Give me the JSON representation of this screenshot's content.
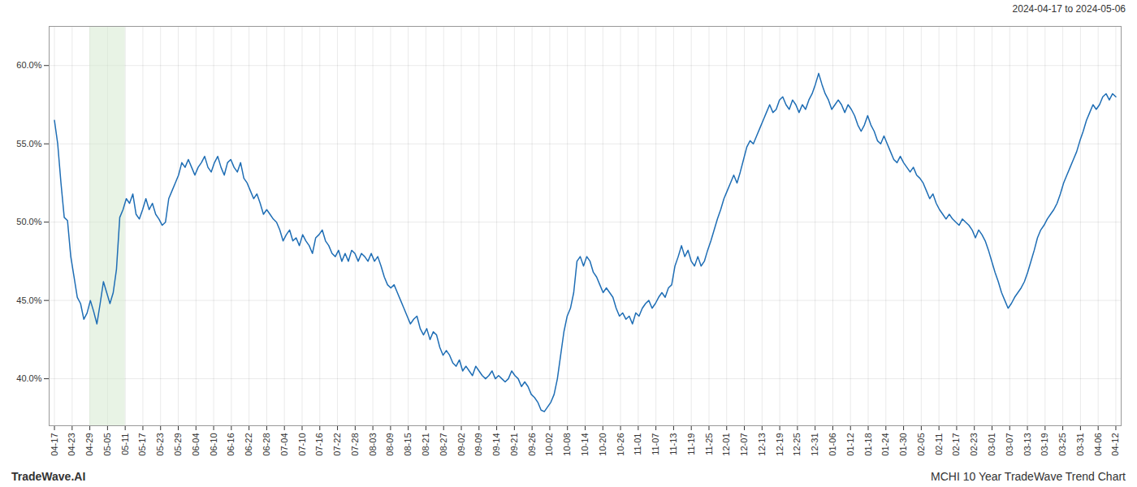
{
  "chart_data": {
    "type": "line",
    "title": "2024-04-17 to 2024-05-06",
    "annotations": [
      "TradeWave.AI",
      "MCHI 10 Year TradeWave Trend Chart"
    ],
    "color": "#1f6eb5",
    "grid": true,
    "xlim": [
      -0.3,
      60.3
    ],
    "xticks": [
      {
        "value": 0,
        "label": "04-17"
      },
      {
        "value": 1,
        "label": "04-23"
      },
      {
        "value": 2,
        "label": "04-29"
      },
      {
        "value": 3,
        "label": "05-05"
      },
      {
        "value": 4,
        "label": "05-11"
      },
      {
        "value": 5,
        "label": "05-17"
      },
      {
        "value": 6,
        "label": "05-23"
      },
      {
        "value": 7,
        "label": "05-29"
      },
      {
        "value": 8,
        "label": "06-04"
      },
      {
        "value": 9,
        "label": "06-10"
      },
      {
        "value": 10,
        "label": "06-16"
      },
      {
        "value": 11,
        "label": "06-22"
      },
      {
        "value": 12,
        "label": "06-28"
      },
      {
        "value": 13,
        "label": "07-04"
      },
      {
        "value": 14,
        "label": "07-10"
      },
      {
        "value": 15,
        "label": "07-16"
      },
      {
        "value": 16,
        "label": "07-22"
      },
      {
        "value": 17,
        "label": "07-28"
      },
      {
        "value": 18,
        "label": "08-03"
      },
      {
        "value": 19,
        "label": "08-09"
      },
      {
        "value": 20,
        "label": "08-15"
      },
      {
        "value": 21,
        "label": "08-21"
      },
      {
        "value": 22,
        "label": "08-27"
      },
      {
        "value": 23,
        "label": "09-02"
      },
      {
        "value": 24,
        "label": "09-09"
      },
      {
        "value": 25,
        "label": "09-14"
      },
      {
        "value": 26,
        "label": "09-21"
      },
      {
        "value": 27,
        "label": "09-26"
      },
      {
        "value": 28,
        "label": "10-02"
      },
      {
        "value": 29,
        "label": "10-08"
      },
      {
        "value": 30,
        "label": "10-14"
      },
      {
        "value": 31,
        "label": "10-20"
      },
      {
        "value": 32,
        "label": "10-26"
      },
      {
        "value": 33,
        "label": "11-01"
      },
      {
        "value": 34,
        "label": "11-07"
      },
      {
        "value": 35,
        "label": "11-13"
      },
      {
        "value": 36,
        "label": "11-19"
      },
      {
        "value": 37,
        "label": "11-25"
      },
      {
        "value": 38,
        "label": "12-01"
      },
      {
        "value": 39,
        "label": "12-07"
      },
      {
        "value": 40,
        "label": "12-13"
      },
      {
        "value": 41,
        "label": "12-19"
      },
      {
        "value": 42,
        "label": "12-25"
      },
      {
        "value": 43,
        "label": "12-31"
      },
      {
        "value": 44,
        "label": "01-06"
      },
      {
        "value": 45,
        "label": "01-12"
      },
      {
        "value": 46,
        "label": "01-18"
      },
      {
        "value": 47,
        "label": "01-24"
      },
      {
        "value": 48,
        "label": "01-30"
      },
      {
        "value": 49,
        "label": "02-05"
      },
      {
        "value": 50,
        "label": "02-11"
      },
      {
        "value": 51,
        "label": "02-17"
      },
      {
        "value": 52,
        "label": "02-23"
      },
      {
        "value": 53,
        "label": "03-01"
      },
      {
        "value": 54,
        "label": "03-07"
      },
      {
        "value": 55,
        "label": "03-13"
      },
      {
        "value": 56,
        "label": "03-19"
      },
      {
        "value": 57,
        "label": "03-25"
      },
      {
        "value": 58,
        "label": "03-31"
      },
      {
        "value": 59,
        "label": "04-06"
      },
      {
        "value": 60,
        "label": "04-12"
      }
    ],
    "ylim": [
      37.0,
      62.5
    ],
    "yticks": [
      {
        "value": 40.0,
        "label": "40.0%"
      },
      {
        "value": 45.0,
        "label": "45.0%"
      },
      {
        "value": 50.0,
        "label": "50.0%"
      },
      {
        "value": 55.0,
        "label": "55.0%"
      },
      {
        "value": 60.0,
        "label": "60.0%"
      }
    ],
    "highlight": {
      "x": [
        2,
        4
      ],
      "color": "#d6ead0"
    },
    "values": [
      56.5,
      55.0,
      52.5,
      50.3,
      50.1,
      47.8,
      46.5,
      45.2,
      44.8,
      43.8,
      44.2,
      45.0,
      44.3,
      43.5,
      44.8,
      46.2,
      45.5,
      44.8,
      45.5,
      47.0,
      50.3,
      50.8,
      51.5,
      51.2,
      51.8,
      50.5,
      50.2,
      50.8,
      51.5,
      50.8,
      51.2,
      50.5,
      50.2,
      49.8,
      50.0,
      51.5,
      52.0,
      52.5,
      53.0,
      53.8,
      53.5,
      54.0,
      53.5,
      53.0,
      53.5,
      53.8,
      54.2,
      53.5,
      53.2,
      53.8,
      54.2,
      53.5,
      53.0,
      53.8,
      54.0,
      53.5,
      53.2,
      53.8,
      52.8,
      52.5,
      52.0,
      51.5,
      51.8,
      51.2,
      50.5,
      50.8,
      50.5,
      50.2,
      50.0,
      49.5,
      48.8,
      49.2,
      49.5,
      48.8,
      49.0,
      48.5,
      49.2,
      48.8,
      48.5,
      48.0,
      49.0,
      49.2,
      49.5,
      48.8,
      48.5,
      48.0,
      47.8,
      48.2,
      47.5,
      48.0,
      47.5,
      48.2,
      48.0,
      47.5,
      48.0,
      47.8,
      47.5,
      48.0,
      47.5,
      47.8,
      47.2,
      46.5,
      46.0,
      45.8,
      46.0,
      45.5,
      45.0,
      44.5,
      44.0,
      43.5,
      43.8,
      44.0,
      43.2,
      42.8,
      43.2,
      42.5,
      43.0,
      42.8,
      42.0,
      41.5,
      41.8,
      41.5,
      41.0,
      40.8,
      41.2,
      40.5,
      40.8,
      40.5,
      40.2,
      40.8,
      40.5,
      40.2,
      40.0,
      40.2,
      40.5,
      40.0,
      40.2,
      40.0,
      39.8,
      40.0,
      40.5,
      40.2,
      40.0,
      39.5,
      39.8,
      39.5,
      39.0,
      38.8,
      38.5,
      38.0,
      37.9,
      38.2,
      38.5,
      39.0,
      40.0,
      41.5,
      43.0,
      44.0,
      44.5,
      45.5,
      47.5,
      47.8,
      47.2,
      47.8,
      47.5,
      46.8,
      46.5,
      46.0,
      45.5,
      45.8,
      45.5,
      45.2,
      44.5,
      44.0,
      44.2,
      43.8,
      44.0,
      43.5,
      44.2,
      44.0,
      44.5,
      44.8,
      45.0,
      44.5,
      44.8,
      45.2,
      45.5,
      45.2,
      45.8,
      46.0,
      47.2,
      47.8,
      48.5,
      47.8,
      48.2,
      47.5,
      47.2,
      47.8,
      47.2,
      47.5,
      48.2,
      48.8,
      49.5,
      50.2,
      50.8,
      51.5,
      52.0,
      52.5,
      53.0,
      52.5,
      53.2,
      54.0,
      54.8,
      55.2,
      55.0,
      55.5,
      56.0,
      56.5,
      57.0,
      57.5,
      57.0,
      57.2,
      57.8,
      58.0,
      57.5,
      57.2,
      57.8,
      57.5,
      57.0,
      57.5,
      57.2,
      57.8,
      58.2,
      58.8,
      59.5,
      58.8,
      58.2,
      57.8,
      57.2,
      57.5,
      57.8,
      57.5,
      57.0,
      57.5,
      57.2,
      56.8,
      56.2,
      55.8,
      56.2,
      56.8,
      56.2,
      55.8,
      55.2,
      55.0,
      55.5,
      55.0,
      54.5,
      54.0,
      53.8,
      54.2,
      53.8,
      53.5,
      53.2,
      53.5,
      53.0,
      52.8,
      52.5,
      52.0,
      51.5,
      51.8,
      51.2,
      50.8,
      50.5,
      50.2,
      50.5,
      50.2,
      50.0,
      49.8,
      50.2,
      50.0,
      49.8,
      49.5,
      49.0,
      49.5,
      49.2,
      48.8,
      48.2,
      47.5,
      46.8,
      46.2,
      45.5,
      45.0,
      44.5,
      44.8,
      45.2,
      45.5,
      45.8,
      46.2,
      46.8,
      47.5,
      48.2,
      49.0,
      49.5,
      49.8,
      50.2,
      50.5,
      50.8,
      51.2,
      51.8,
      52.5,
      53.0,
      53.5,
      54.0,
      54.5,
      55.2,
      55.8,
      56.5,
      57.0,
      57.5,
      57.2,
      57.5,
      58.0,
      58.2,
      57.8,
      58.2,
      58.0
    ]
  }
}
